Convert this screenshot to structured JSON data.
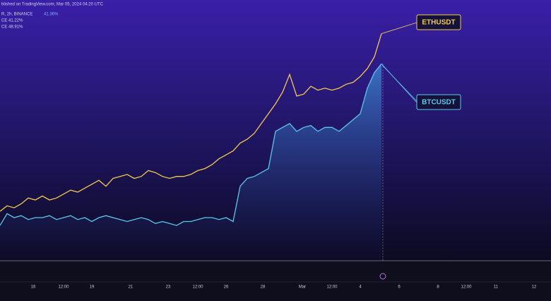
{
  "chart_data": {
    "type": "line",
    "header": [
      "blished on TradingView.com, Mar 05, 2024 04:20 UTC",
      "R, 2h, BINANCE",
      "41.36%",
      "CE 41.22%",
      "CE 48.91%"
    ],
    "x_labels": [
      "16",
      "12:00",
      "19",
      "21",
      "23",
      "12:00",
      "26",
      "28",
      "Mar",
      "12:00",
      "4",
      "6",
      "8",
      "12:00",
      "11",
      "12"
    ],
    "ylim": [
      -9,
      57.5
    ],
    "series": [
      {
        "name": "ETHUSDT",
        "color": "#f2c94c",
        "values": [
          3.6,
          5,
          4.5,
          5.5,
          7,
          6.5,
          7.5,
          6.5,
          7,
          8,
          9,
          8.5,
          9.5,
          10.5,
          11.5,
          10,
          12,
          12.5,
          13,
          12,
          12.5,
          14,
          13.5,
          12.5,
          12,
          12.5,
          12.5,
          13,
          14,
          14.5,
          15.5,
          17,
          18,
          19,
          21,
          22,
          23.5,
          26,
          28.5,
          31,
          34,
          38.5,
          33,
          33.5,
          35.5,
          34.5,
          35,
          34.5,
          35,
          36,
          36.5,
          38,
          40,
          43,
          48.91
        ]
      },
      {
        "name": "BTCUSDT",
        "color": "#5bc8e8",
        "values": [
          0,
          3,
          2,
          2.5,
          1.5,
          2,
          2,
          2.5,
          1.5,
          2,
          2.5,
          1.5,
          2,
          1,
          2,
          2.5,
          2,
          1.5,
          1,
          1.5,
          2,
          1.5,
          0.5,
          1,
          0.5,
          0,
          1,
          1,
          1.5,
          2,
          2,
          1.5,
          2,
          1,
          10,
          12,
          12.5,
          13.5,
          14.5,
          24,
          25,
          26,
          24,
          25,
          25.5,
          24,
          25,
          25,
          24,
          25.5,
          27,
          28.5,
          35,
          39,
          41.22
        ]
      }
    ]
  }
}
